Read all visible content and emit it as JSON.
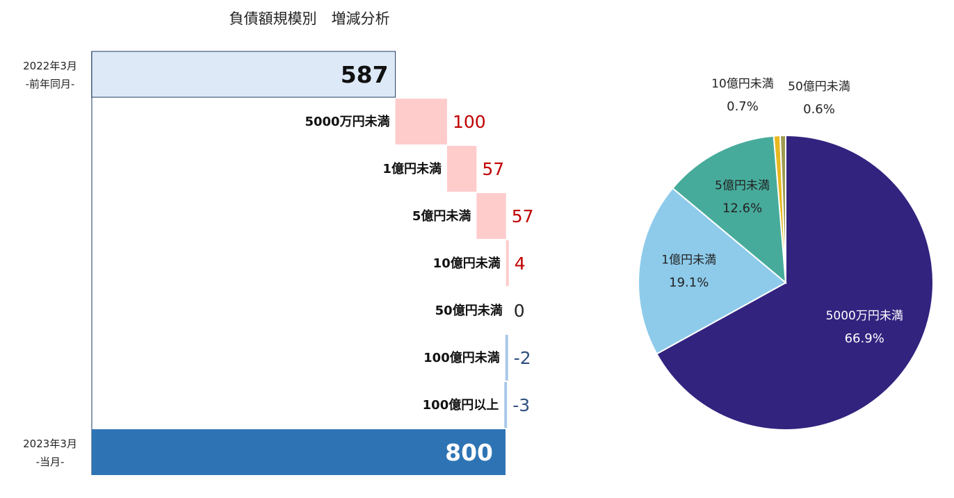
{
  "chart_data": [
    {
      "type": "waterfall",
      "title": "負債額規模別　増減分析",
      "start": {
        "label_line1": "2022年3月",
        "label_line2": "-前年同月-",
        "value": 587
      },
      "steps": [
        {
          "label": "5000万円未満",
          "value": 100,
          "display": "100"
        },
        {
          "label": "1億円未満",
          "value": 57,
          "display": "57"
        },
        {
          "label": "5億円未満",
          "value": 57,
          "display": "57"
        },
        {
          "label": "10億円未満",
          "value": 4,
          "display": "4"
        },
        {
          "label": "50億円未満",
          "value": 0,
          "display": "0"
        },
        {
          "label": "100億円未満",
          "value": -2,
          "display": "-2"
        },
        {
          "label": "100億円以上",
          "value": -3,
          "display": "-3"
        }
      ],
      "end": {
        "label_line1": "2023年3月",
        "label_line2": "-当月-",
        "value": 800
      },
      "xlim": [
        0,
        800
      ],
      "colors": {
        "start": "#dde9f7",
        "start_border": "#1f3a5f",
        "increase": "#ffcccc",
        "decrease": "#a9c8ea",
        "end": "#2e74b5",
        "increase_text": "#c00000",
        "decrease_text": "#2f4f7f",
        "zero_text": "#222222"
      }
    },
    {
      "type": "pie",
      "slices": [
        {
          "label": "5000万円未満",
          "percent_label": "66.9%",
          "value": 66.9,
          "color": "#32237f"
        },
        {
          "label": "1億円未満",
          "percent_label": "19.1%",
          "value": 19.1,
          "color": "#8ecbeb"
        },
        {
          "label": "5億円未満",
          "percent_label": "12.6%",
          "value": 12.6,
          "color": "#47ab9b"
        },
        {
          "label": "10億円未満",
          "percent_label": "0.7%",
          "value": 0.7,
          "color": "#e8b820"
        },
        {
          "label": "50億円未満",
          "percent_label": "0.6%",
          "value": 0.6,
          "color": "#9e9a50"
        }
      ]
    }
  ]
}
